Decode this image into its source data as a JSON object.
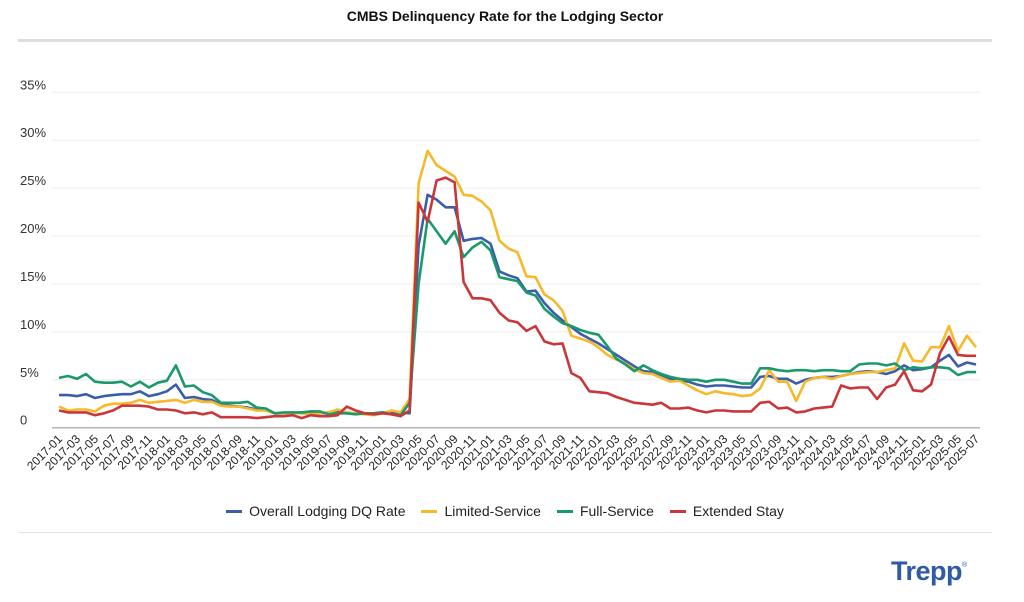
{
  "chart_data": {
    "type": "line",
    "title": "CMBS Delinquency Rate for the Lodging Sector",
    "xlabel": "",
    "ylabel": "",
    "ylim": [
      0,
      35
    ],
    "y_ticks": [
      "0",
      "5%",
      "10%",
      "15%",
      "20%",
      "25%",
      "30%",
      "35%"
    ],
    "x_start": "2017-01",
    "x_end": "2025-07",
    "x_tick_labels": [
      "2017-01",
      "2017-03",
      "2017-05",
      "2017-07",
      "2017-09",
      "2017-11",
      "2018-01",
      "2018-03",
      "2018-05",
      "2018-07",
      "2018-09",
      "2018-11",
      "2019-01",
      "2019-03",
      "2019-05",
      "2019-07",
      "2019-09",
      "2019-11",
      "2020-01",
      "2020-03",
      "2020-05",
      "2020-07",
      "2020-09",
      "2020-11",
      "2021-01",
      "2021-03",
      "2021-05",
      "2021-07",
      "2021-09",
      "2021-11",
      "2022-01",
      "2022-03",
      "2022-05",
      "2022-07",
      "2022-09",
      "2022-11",
      "2023-01",
      "2023-03",
      "2023-05",
      "2023-07",
      "2023-09",
      "2023-11",
      "2024-01",
      "2024-03",
      "2024-05",
      "2024-07",
      "2024-09",
      "2024-11",
      "2025-01",
      "2025-03",
      "2025-05",
      "2025-07"
    ],
    "grid": true,
    "legend_position": "bottom",
    "series": [
      {
        "name": "Overall Lodging DQ Rate",
        "color": "#3b5ea8",
        "values": [
          3.4,
          3.4,
          3.3,
          3.5,
          3.1,
          3.3,
          3.4,
          3.5,
          3.5,
          3.8,
          3.3,
          3.5,
          3.8,
          4.5,
          3.1,
          3.2,
          3.0,
          2.9,
          2.4,
          2.3,
          2.2,
          2.1,
          1.9,
          1.8,
          1.5,
          1.5,
          1.5,
          1.6,
          1.5,
          1.5,
          1.6,
          1.8,
          1.5,
          1.5,
          1.5,
          1.5,
          1.6,
          1.5,
          1.6,
          1.5,
          19.0,
          24.3,
          23.8,
          23.0,
          23.0,
          19.5,
          19.7,
          19.8,
          19.2,
          16.3,
          15.9,
          15.6,
          14.2,
          14.3,
          13.0,
          12.0,
          11.2,
          10.5,
          9.8,
          9.3,
          8.8,
          8.2,
          7.6,
          7.0,
          6.4,
          5.9,
          5.8,
          5.5,
          5.1,
          5.0,
          4.8,
          4.5,
          4.3,
          4.4,
          4.4,
          4.3,
          4.2,
          4.2,
          5.3,
          5.4,
          5.1,
          5.1,
          4.6,
          5.0,
          5.2,
          5.3,
          5.3,
          5.4,
          5.6,
          5.8,
          5.9,
          5.8,
          5.6,
          5.9,
          6.5,
          6.0,
          6.1,
          6.3,
          7.0,
          7.6,
          6.4,
          6.8,
          6.6
        ]
      },
      {
        "name": "Limited-Service",
        "color": "#f6b92b",
        "values": [
          2.2,
          1.8,
          1.9,
          1.9,
          1.7,
          2.3,
          2.5,
          2.5,
          2.6,
          2.9,
          2.6,
          2.7,
          2.8,
          2.9,
          2.6,
          2.9,
          2.7,
          2.7,
          2.3,
          2.2,
          2.2,
          2.0,
          1.8,
          1.8,
          1.5,
          1.5,
          1.5,
          1.5,
          1.4,
          1.5,
          1.6,
          1.9,
          1.6,
          1.5,
          1.4,
          1.3,
          1.5,
          1.8,
          1.6,
          3.0,
          25.5,
          28.9,
          27.4,
          26.8,
          26.2,
          24.3,
          24.2,
          23.6,
          22.7,
          19.5,
          18.7,
          18.3,
          15.8,
          15.7,
          13.9,
          13.3,
          12.2,
          9.6,
          9.3,
          9.0,
          8.4,
          7.6,
          7.1,
          6.7,
          6.1,
          5.7,
          5.6,
          5.2,
          4.8,
          4.9,
          4.4,
          3.9,
          3.5,
          3.8,
          3.6,
          3.5,
          3.3,
          3.4,
          4.1,
          6.0,
          4.8,
          4.8,
          2.8,
          4.8,
          5.2,
          5.3,
          5.1,
          5.4,
          5.6,
          5.7,
          5.8,
          5.8,
          6.0,
          6.2,
          8.8,
          7.0,
          6.9,
          8.4,
          8.4,
          10.6,
          8.0,
          9.6,
          8.4
        ]
      },
      {
        "name": "Full-Service",
        "color": "#1a9a6c",
        "values": [
          5.2,
          5.4,
          5.1,
          5.6,
          4.8,
          4.7,
          4.7,
          4.8,
          4.3,
          4.8,
          4.2,
          4.7,
          4.9,
          6.5,
          4.3,
          4.4,
          3.7,
          3.4,
          2.6,
          2.6,
          2.6,
          2.7,
          2.1,
          2.0,
          1.5,
          1.6,
          1.6,
          1.6,
          1.7,
          1.7,
          1.4,
          1.5,
          1.5,
          1.4,
          1.5,
          1.5,
          1.6,
          1.4,
          1.3,
          2.6,
          15.0,
          21.8,
          20.5,
          19.2,
          20.5,
          17.8,
          18.8,
          19.4,
          18.5,
          15.7,
          15.5,
          15.3,
          14.1,
          13.8,
          12.4,
          11.6,
          10.9,
          10.6,
          10.2,
          9.9,
          9.7,
          8.5,
          7.2,
          6.6,
          5.9,
          6.5,
          6.0,
          5.6,
          5.3,
          5.1,
          5.0,
          5.0,
          4.8,
          5.0,
          5.0,
          4.8,
          4.6,
          4.6,
          6.2,
          6.2,
          6.0,
          5.9,
          6.0,
          6.0,
          5.9,
          6.0,
          6.0,
          5.9,
          5.9,
          6.6,
          6.7,
          6.7,
          6.5,
          6.7,
          6.0,
          6.3,
          6.2,
          6.3,
          6.3,
          6.2,
          5.5,
          5.8,
          5.8
        ]
      },
      {
        "name": "Extended Stay",
        "color": "#c9373a",
        "values": [
          1.8,
          1.6,
          1.6,
          1.6,
          1.3,
          1.5,
          1.8,
          2.3,
          2.3,
          2.3,
          2.2,
          1.9,
          1.9,
          1.8,
          1.5,
          1.6,
          1.4,
          1.6,
          1.1,
          1.1,
          1.1,
          1.1,
          1.0,
          1.1,
          1.2,
          1.2,
          1.3,
          1.0,
          1.3,
          1.2,
          1.2,
          1.3,
          2.2,
          1.8,
          1.5,
          1.4,
          1.5,
          1.4,
          1.2,
          1.8,
          23.5,
          21.5,
          25.8,
          26.1,
          25.6,
          15.2,
          13.5,
          13.5,
          13.3,
          12.0,
          11.2,
          11.0,
          10.1,
          10.6,
          9.0,
          8.7,
          8.8,
          5.7,
          5.2,
          3.8,
          3.7,
          3.6,
          3.2,
          2.9,
          2.6,
          2.5,
          2.4,
          2.6,
          2.0,
          2.0,
          2.1,
          1.8,
          1.6,
          1.8,
          1.8,
          1.7,
          1.7,
          1.7,
          2.6,
          2.7,
          2.0,
          2.1,
          1.6,
          1.7,
          2.0,
          2.1,
          2.2,
          4.4,
          4.1,
          4.2,
          4.2,
          3.0,
          4.2,
          4.5,
          5.9,
          3.9,
          3.8,
          4.5,
          7.8,
          9.5,
          7.6,
          7.5,
          7.5
        ]
      }
    ]
  },
  "brand": {
    "logo_text": "Trepp",
    "logo_color": "#2f5aa8"
  }
}
